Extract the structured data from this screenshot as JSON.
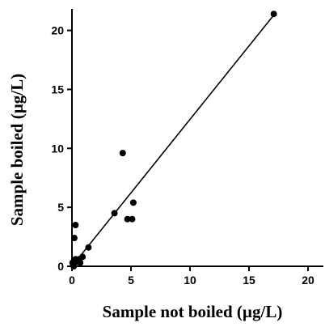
{
  "chart_data": {
    "type": "scatter",
    "xlabel": "Sample not boiled (µg/L)",
    "ylabel": "Sample boiled (µg/L)",
    "xlim": [
      0,
      21.5
    ],
    "ylim": [
      0,
      22
    ],
    "xticks": [
      "0",
      "5",
      "10",
      "15",
      "20"
    ],
    "yticks": [
      "0",
      "5",
      "10",
      "15",
      "20"
    ],
    "grid": false,
    "points": [
      {
        "x": 17.1,
        "y": 21.4
      },
      {
        "x": 4.3,
        "y": 9.6
      },
      {
        "x": 3.6,
        "y": 4.5
      },
      {
        "x": 5.2,
        "y": 5.4
      },
      {
        "x": 4.7,
        "y": 4.0
      },
      {
        "x": 5.1,
        "y": 4.0
      },
      {
        "x": 1.4,
        "y": 1.6
      },
      {
        "x": 0.3,
        "y": 3.5
      },
      {
        "x": 0.2,
        "y": 2.4
      },
      {
        "x": 0.9,
        "y": 0.8
      },
      {
        "x": 0.6,
        "y": 0.6
      },
      {
        "x": 0.4,
        "y": 0.4
      },
      {
        "x": 0.3,
        "y": 0.6
      },
      {
        "x": 0.7,
        "y": 0.3
      },
      {
        "x": 0.2,
        "y": 0.2
      },
      {
        "x": 0.1,
        "y": 0.1
      },
      {
        "x": 0.15,
        "y": 0.0
      },
      {
        "x": 0.5,
        "y": 0.5
      },
      {
        "x": 0.05,
        "y": 0.3
      }
    ],
    "trendline": {
      "x1": 0.0,
      "y1": 0.0,
      "x2": 17.1,
      "y2": 21.3
    }
  },
  "colors": {
    "marker": "#000000",
    "axis": "#000000",
    "line": "#000000"
  }
}
